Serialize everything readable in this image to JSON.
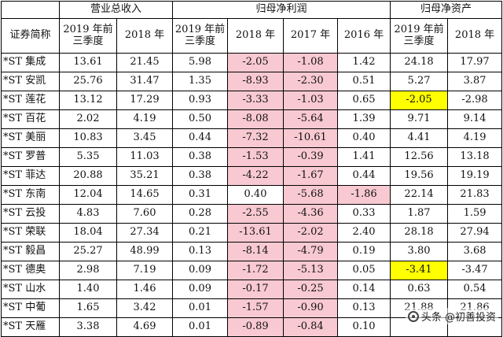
{
  "headers": {
    "group_revenue": "营业总收入",
    "group_profit": "归母净利润",
    "group_assets": "归母净资产",
    "name_col": "证券简称",
    "rev_cols": [
      "2019 年前三季度",
      "2018 年"
    ],
    "profit_cols": [
      "2019 年前三季度",
      "2018 年",
      "2017 年",
      "2016 年"
    ],
    "asset_cols": [
      "2019 年前三季度",
      "2018 年"
    ]
  },
  "rows": [
    {
      "name": "*ST 集成",
      "cells": [
        "13.61",
        "21.45",
        "5.98",
        "-2.05",
        "-1.08",
        "1.42",
        "24.18",
        "17.97"
      ],
      "hl": [
        null,
        null,
        null,
        "pink",
        "pink",
        null,
        null,
        null
      ]
    },
    {
      "name": "*ST 安凯",
      "cells": [
        "25.76",
        "31.47",
        "1.35",
        "-8.93",
        "-2.30",
        "0.51",
        "5.27",
        "3.87"
      ],
      "hl": [
        null,
        null,
        null,
        "pink",
        "pink",
        null,
        null,
        null
      ]
    },
    {
      "name": "*ST 莲花",
      "cells": [
        "13.12",
        "17.29",
        "0.93",
        "-3.33",
        "-1.03",
        "0.65",
        "-2.05",
        "-2.98"
      ],
      "hl": [
        null,
        null,
        null,
        "pink",
        "pink",
        null,
        "yellow",
        null
      ]
    },
    {
      "name": "*ST 百花",
      "cells": [
        "2.02",
        "4.19",
        "0.50",
        "-8.08",
        "-5.64",
        "1.39",
        "9.71",
        "9.14"
      ],
      "hl": [
        null,
        null,
        null,
        "pink",
        "pink",
        null,
        null,
        null
      ]
    },
    {
      "name": "*ST 美丽",
      "cells": [
        "10.83",
        "3.45",
        "0.44",
        "-7.32",
        "-10.61",
        "0.40",
        "4.41",
        "4.19"
      ],
      "hl": [
        null,
        null,
        null,
        "pink",
        "pink",
        null,
        null,
        null
      ]
    },
    {
      "name": "*ST 罗普",
      "cells": [
        "5.35",
        "11.03",
        "0.38",
        "-1.53",
        "-0.39",
        "1.41",
        "12.56",
        "13.18"
      ],
      "hl": [
        null,
        null,
        null,
        "pink",
        "pink",
        null,
        null,
        null
      ]
    },
    {
      "name": "*ST 菲达",
      "cells": [
        "20.88",
        "35.21",
        "0.38",
        "-4.22",
        "-1.67",
        "0.44",
        "19.56",
        "19.19"
      ],
      "hl": [
        null,
        null,
        null,
        "pink",
        "pink",
        null,
        null,
        null
      ]
    },
    {
      "name": "*ST 东南",
      "cells": [
        "12.04",
        "14.65",
        "0.31",
        "0.40",
        "-5.68",
        "-1.86",
        "22.14",
        "21.83"
      ],
      "hl": [
        null,
        null,
        null,
        null,
        "pink",
        "pink",
        null,
        null
      ]
    },
    {
      "name": "*ST 云投",
      "cells": [
        "4.83",
        "7.60",
        "0.28",
        "-2.55",
        "-4.36",
        "0.33",
        "1.87",
        "1.59"
      ],
      "hl": [
        null,
        null,
        null,
        "pink",
        "pink",
        null,
        null,
        null
      ]
    },
    {
      "name": "*ST 荣联",
      "cells": [
        "18.04",
        "27.34",
        "0.21",
        "-13.61",
        "-2.02",
        "2.40",
        "28.18",
        "27.94"
      ],
      "hl": [
        null,
        null,
        null,
        "pink",
        "pink",
        null,
        null,
        null
      ]
    },
    {
      "name": "*ST 毅昌",
      "cells": [
        "25.27",
        "48.99",
        "0.13",
        "-8.14",
        "-4.79",
        "0.19",
        "3.80",
        "3.68"
      ],
      "hl": [
        null,
        null,
        null,
        "pink",
        "pink",
        null,
        null,
        null
      ]
    },
    {
      "name": "*ST 德奥",
      "cells": [
        "2.98",
        "7.19",
        "0.09",
        "-1.72",
        "-5.13",
        "0.05",
        "-3.41",
        "-3.47"
      ],
      "hl": [
        null,
        null,
        null,
        "pink",
        "pink",
        null,
        "yellow",
        null
      ]
    },
    {
      "name": "*ST 山水",
      "cells": [
        "1.40",
        "1.46",
        "0.09",
        "-0.17",
        "-0.25",
        "0.14",
        "0.63",
        "0.54"
      ],
      "hl": [
        null,
        null,
        null,
        "pink",
        "pink",
        null,
        null,
        null
      ]
    },
    {
      "name": "*ST 中葡",
      "cells": [
        "1.65",
        "3.42",
        "0.01",
        "-1.57",
        "-0.90",
        "0.13",
        "21.88",
        "21.86"
      ],
      "hl": [
        null,
        null,
        null,
        "pink",
        "pink",
        null,
        null,
        null
      ]
    },
    {
      "name": "*ST 天雁",
      "cells": [
        "3.38",
        "4.69",
        "0.01",
        "-0.89",
        "-0.84",
        "0.10",
        "",
        ""
      ],
      "hl": [
        null,
        null,
        null,
        "pink",
        "pink",
        null,
        null,
        null
      ]
    }
  ],
  "watermark": {
    "text": "头条 @初善投资",
    "icon": "camera-lens-icon"
  }
}
